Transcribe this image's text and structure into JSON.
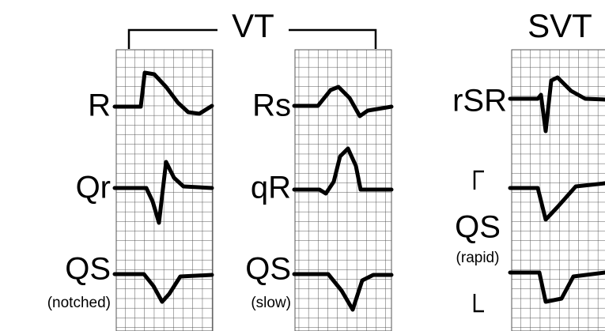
{
  "groups": [
    {
      "title": "VT"
    },
    {
      "title": "SVT"
    }
  ],
  "labels": {
    "vt_col1": [
      "R",
      "Qr",
      "QS"
    ],
    "vt_col2": [
      "Rs",
      "qR",
      "QS"
    ],
    "svt": [
      "rSR",
      "QS"
    ]
  },
  "notes": {
    "vt_col1": "(notched)",
    "vt_col2": "(slow)",
    "svt": "(rapid)"
  }
}
